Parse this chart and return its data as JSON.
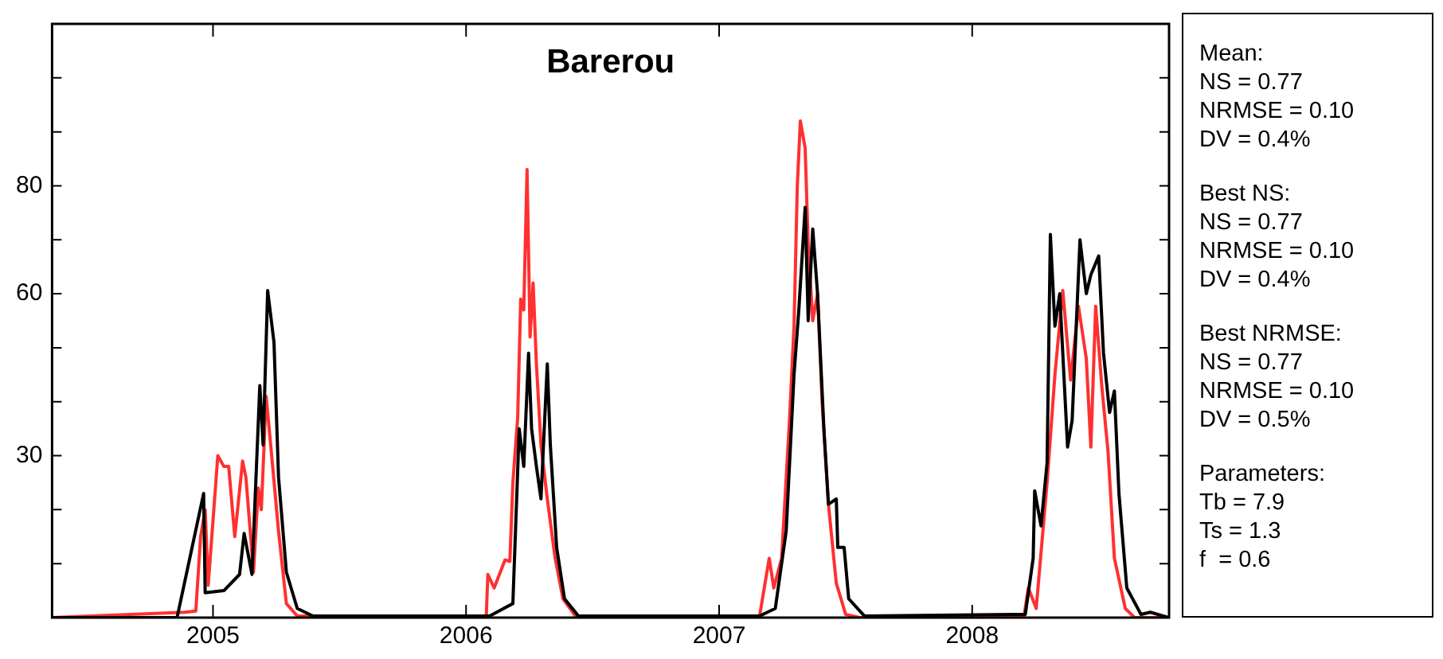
{
  "chart_data": {
    "type": "line",
    "title": "Barerou",
    "xlim": [
      2004.364,
      2008.778
    ],
    "xticks": [
      2005,
      2006,
      2007,
      2008
    ],
    "ylim": [
      0,
      110
    ],
    "yticks": [
      {
        "value": 0,
        "label": null
      },
      {
        "value": 10,
        "label": null
      },
      {
        "value": 20,
        "label": null
      },
      30,
      {
        "value": 40,
        "label": null
      },
      {
        "value": 50,
        "label": null
      },
      60,
      {
        "value": 70,
        "label": null
      },
      80,
      {
        "value": 90,
        "label": null
      },
      {
        "value": 100,
        "label": null
      },
      {
        "value": 110,
        "label": null
      }
    ],
    "grid": false,
    "legend": false,
    "marker": "none",
    "line_style": "solid",
    "annotations": [
      "Mean:\nNS = 0.77\nNRMSE = 0.10\nDV = 0.4%",
      "Best NS:\nNS = 0.77\nNRMSE = 0.10\nDV = 0.4%",
      "Best NRMSE:\nNS = 0.77\nNRMSE = 0.10\nDV = 0.5%",
      "Parameters:\nTb = 7.9\nTs = 1.3\nf  = 0.6"
    ],
    "series": [
      {
        "color": "#000000",
        "x": [
          2004.364,
          2004.858,
          2004.963,
          2004.969,
          2005.043,
          2005.105,
          2005.123,
          2005.154,
          2005.185,
          2005.198,
          2005.216,
          2005.241,
          2005.259,
          2005.29,
          2005.333,
          2005.395,
          2006.093,
          2006.185,
          2006.21,
          2006.228,
          2006.247,
          2006.259,
          2006.278,
          2006.296,
          2006.321,
          2006.333,
          2006.358,
          2006.389,
          2006.444,
          2007.16,
          2007.222,
          2007.265,
          2007.296,
          2007.315,
          2007.34,
          2007.352,
          2007.37,
          2007.389,
          2007.414,
          2007.432,
          2007.463,
          2007.469,
          2007.494,
          2007.512,
          2007.574,
          2008.21,
          2008.241,
          2008.247,
          2008.272,
          2008.296,
          2008.309,
          2008.327,
          2008.346,
          2008.377,
          2008.395,
          2008.426,
          2008.451,
          2008.469,
          2008.5,
          2008.519,
          2008.543,
          2008.562,
          2008.58,
          2008.611,
          2008.667,
          2008.704,
          2008.778
        ],
        "values": [
          0,
          0,
          23,
          4.6,
          5,
          8,
          15.6,
          8,
          43,
          32,
          60.6,
          51,
          26,
          8.4,
          1.7,
          0.3,
          0.3,
          2.6,
          35,
          28,
          49,
          35,
          28,
          22,
          47,
          32,
          13,
          3.5,
          0.3,
          0.3,
          1.7,
          16,
          45,
          57,
          76,
          55,
          72,
          60,
          35,
          21,
          22,
          13,
          13,
          3.5,
          0.3,
          0.6,
          11,
          23.5,
          17,
          28.7,
          71,
          54,
          60,
          31.6,
          36.5,
          70,
          60,
          63.5,
          67,
          49,
          38,
          42,
          23,
          5.5,
          0.6,
          1,
          0
        ]
      },
      {
        "color": "#ff3030",
        "x": [
          2004.364,
          2004.889,
          2004.932,
          2004.951,
          2004.969,
          2004.981,
          2005.019,
          2005.043,
          2005.062,
          2005.086,
          2005.117,
          2005.13,
          2005.16,
          2005.179,
          2005.191,
          2005.21,
          2005.228,
          2005.259,
          2005.29,
          2005.333,
          2006.08,
          2006.086,
          2006.111,
          2006.154,
          2006.173,
          2006.185,
          2006.204,
          2006.216,
          2006.228,
          2006.241,
          2006.253,
          2006.265,
          2006.278,
          2006.296,
          2006.321,
          2006.352,
          2006.383,
          2006.432,
          2007.16,
          2007.198,
          2007.216,
          2007.247,
          2007.278,
          2007.296,
          2007.309,
          2007.321,
          2007.34,
          2007.352,
          2007.37,
          2007.389,
          2007.407,
          2007.432,
          2007.463,
          2007.5,
          2007.556,
          2008.204,
          2008.222,
          2008.253,
          2008.296,
          2008.327,
          2008.358,
          2008.389,
          2008.42,
          2008.451,
          2008.469,
          2008.488,
          2008.512,
          2008.537,
          2008.562,
          2008.605,
          2008.642,
          2008.778
        ],
        "values": [
          0,
          1,
          1.2,
          15,
          20,
          6,
          30,
          28,
          28,
          15,
          29,
          26,
          8.4,
          24,
          20,
          41,
          32,
          16,
          2.6,
          0.3,
          0.3,
          8,
          5.5,
          10.7,
          10.4,
          25,
          37,
          59,
          57,
          83,
          52,
          62,
          47,
          32,
          22,
          11,
          3.5,
          0.3,
          0.3,
          11,
          5.5,
          11,
          36.5,
          54,
          80,
          92,
          87,
          69,
          55,
          60,
          40,
          21,
          6.4,
          0.6,
          0,
          0,
          5.5,
          1.7,
          25,
          45,
          60.6,
          44,
          57.7,
          48,
          31.6,
          57.7,
          43,
          30.7,
          11,
          1.7,
          0,
          0
        ]
      }
    ]
  }
}
